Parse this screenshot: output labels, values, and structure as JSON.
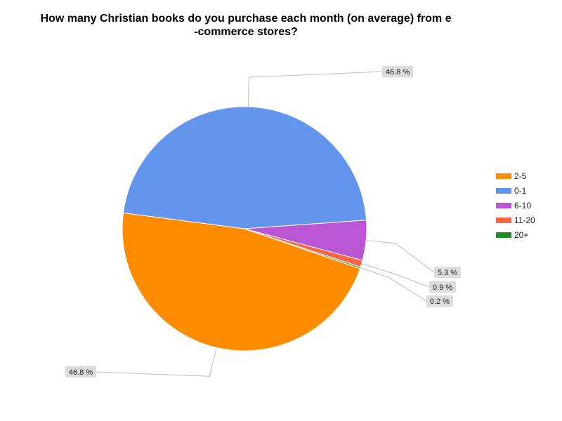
{
  "chart_data": {
    "type": "pie",
    "title_lines": [
      "How many Christian books do you purchase each month (on average) from e",
      "-commerce stores?"
    ],
    "legend_position": "right",
    "slices": [
      {
        "label": "2-5",
        "value": 46.8,
        "display": "46.8 %",
        "color": "#ff8c00"
      },
      {
        "label": "0-1",
        "value": 46.8,
        "display": "46.8 %",
        "color": "#6495ed"
      },
      {
        "label": "6-10",
        "value": 5.3,
        "display": "5.3 %",
        "color": "#ba55d3"
      },
      {
        "label": "11-20",
        "value": 0.9,
        "display": "0.9 %",
        "color": "#ff6347"
      },
      {
        "label": "20+",
        "value": 0.2,
        "display": "0.2 %",
        "color": "#228b22"
      }
    ]
  }
}
